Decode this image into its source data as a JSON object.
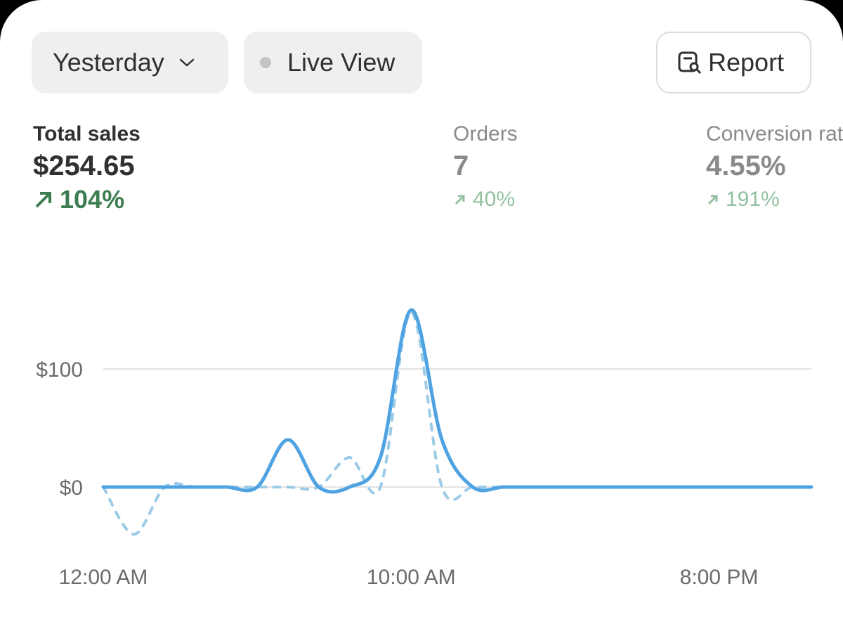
{
  "controls": {
    "date_range": "Yesterday",
    "live_view": "Live View",
    "report": "Report"
  },
  "metrics": [
    {
      "label": "Total sales",
      "value": "$254.65",
      "change": "104%"
    },
    {
      "label": "Orders",
      "value": "7",
      "change": "40%"
    },
    {
      "label": "Conversion rate",
      "value": "4.55%",
      "change": "191%"
    }
  ],
  "chart_data": {
    "type": "line",
    "x": [
      0,
      1,
      2,
      3,
      4,
      5,
      6,
      7,
      8,
      9,
      10,
      11,
      12,
      13,
      14,
      15,
      16,
      17,
      18,
      19,
      20,
      21,
      22,
      23
    ],
    "xlim": [
      0,
      23
    ],
    "xticks": [
      {
        "value": 0,
        "label": "12:00 AM"
      },
      {
        "value": 10,
        "label": "10:00 AM"
      },
      {
        "value": 20,
        "label": "8:00 PM"
      }
    ],
    "ylim": [
      -50,
      160
    ],
    "yticks": [
      {
        "value": 0,
        "label": "$0"
      },
      {
        "value": 100,
        "label": "$100"
      }
    ],
    "grid": true,
    "series": [
      {
        "color": "#4fa3e2",
        "style": "solid",
        "values": [
          0,
          0,
          0,
          0,
          0,
          0,
          40,
          0,
          0,
          25,
          150,
          40,
          0,
          0,
          0,
          0,
          0,
          0,
          0,
          0,
          0,
          0,
          0,
          0
        ]
      },
      {
        "color": "#9ccbe8",
        "style": "dashed",
        "values": [
          0,
          -40,
          0,
          0,
          0,
          0,
          0,
          0,
          25,
          0,
          148,
          0,
          0,
          0,
          0,
          0,
          0,
          0,
          0,
          0,
          0,
          0,
          0,
          0
        ]
      }
    ]
  }
}
